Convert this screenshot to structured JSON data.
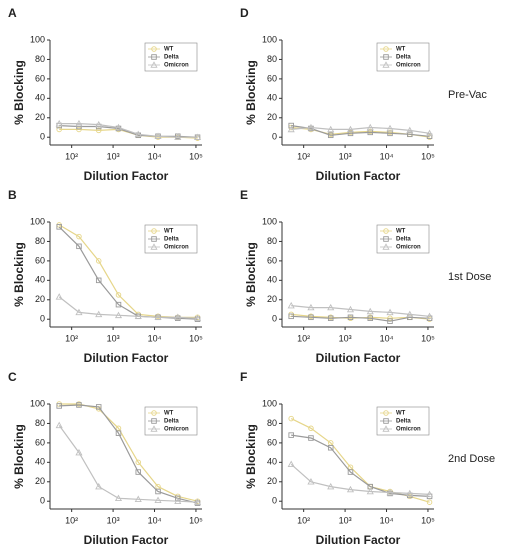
{
  "chart_data": [
    {
      "type": "line",
      "panel": "A",
      "xlabel": "Dilution Factor",
      "ylabel": "% Blocking",
      "log_x": true,
      "x": [
        50,
        150,
        450,
        1350,
        4050,
        12150,
        36450,
        109350
      ],
      "xlim": [
        30,
        140000
      ],
      "xticks": [
        {
          "value": 100,
          "label": "10²"
        },
        {
          "value": 1000,
          "label": "10³"
        },
        {
          "value": 10000,
          "label": "10⁴"
        },
        {
          "value": 100000,
          "label": "10⁵"
        }
      ],
      "ylim": [
        -8,
        100
      ],
      "yticks": [
        0,
        20,
        40,
        60,
        80,
        100
      ],
      "series": [
        {
          "name": "WT",
          "color": "#e6d68a",
          "marker": "circle",
          "values": [
            8,
            8,
            7,
            8,
            2,
            0,
            0,
            -1
          ]
        },
        {
          "name": "Delta",
          "color": "#9a9a9a",
          "marker": "square",
          "values": [
            12,
            11,
            11,
            9,
            2,
            1,
            1,
            0
          ]
        },
        {
          "name": "Omicron",
          "color": "#c0c0c0",
          "marker": "triangle",
          "values": [
            14,
            14,
            13,
            10,
            3,
            1,
            0,
            0
          ]
        }
      ]
    },
    {
      "type": "line",
      "panel": "B",
      "xlabel": "Dilution Factor",
      "ylabel": "% Blocking",
      "log_x": true,
      "x": [
        50,
        150,
        450,
        1350,
        4050,
        12150,
        36450,
        109350
      ],
      "xlim": [
        30,
        140000
      ],
      "xticks": [
        {
          "value": 100,
          "label": "10²"
        },
        {
          "value": 1000,
          "label": "10³"
        },
        {
          "value": 10000,
          "label": "10⁴"
        },
        {
          "value": 100000,
          "label": "10⁵"
        }
      ],
      "ylim": [
        -8,
        100
      ],
      "yticks": [
        0,
        20,
        40,
        60,
        80,
        100
      ],
      "series": [
        {
          "name": "WT",
          "color": "#e6d68a",
          "marker": "circle",
          "values": [
            97,
            85,
            60,
            25,
            5,
            3,
            2,
            2
          ]
        },
        {
          "name": "Delta",
          "color": "#9a9a9a",
          "marker": "square",
          "values": [
            95,
            75,
            40,
            15,
            3,
            2,
            1,
            0
          ]
        },
        {
          "name": "Omicron",
          "color": "#c0c0c0",
          "marker": "triangle",
          "values": [
            23,
            7,
            5,
            4,
            3,
            2,
            2,
            1
          ]
        }
      ]
    },
    {
      "type": "line",
      "panel": "C",
      "xlabel": "Dilution Factor",
      "ylabel": "% Blocking",
      "log_x": true,
      "x": [
        50,
        150,
        450,
        1350,
        4050,
        12150,
        36450,
        109350
      ],
      "xlim": [
        30,
        140000
      ],
      "xticks": [
        {
          "value": 100,
          "label": "10²"
        },
        {
          "value": 1000,
          "label": "10³"
        },
        {
          "value": 10000,
          "label": "10⁴"
        },
        {
          "value": 100000,
          "label": "10⁵"
        }
      ],
      "ylim": [
        -8,
        100
      ],
      "yticks": [
        0,
        20,
        40,
        60,
        80,
        100
      ],
      "series": [
        {
          "name": "WT",
          "color": "#e6d68a",
          "marker": "circle",
          "values": [
            100,
            100,
            95,
            75,
            40,
            15,
            5,
            0
          ]
        },
        {
          "name": "Delta",
          "color": "#9a9a9a",
          "marker": "square",
          "values": [
            98,
            99,
            97,
            70,
            30,
            10,
            3,
            -2
          ]
        },
        {
          "name": "Omicron",
          "color": "#c0c0c0",
          "marker": "triangle",
          "values": [
            78,
            50,
            15,
            3,
            2,
            1,
            0,
            -1
          ]
        }
      ]
    },
    {
      "type": "line",
      "panel": "D",
      "row_label": "Pre-Vac",
      "xlabel": "Dilution Factor",
      "ylabel": "% Blocking",
      "log_x": true,
      "x": [
        50,
        150,
        450,
        1350,
        4050,
        12150,
        36450,
        109350
      ],
      "xlim": [
        30,
        140000
      ],
      "xticks": [
        {
          "value": 100,
          "label": "10²"
        },
        {
          "value": 1000,
          "label": "10³"
        },
        {
          "value": 10000,
          "label": "10⁴"
        },
        {
          "value": 100000,
          "label": "10⁵"
        }
      ],
      "ylim": [
        -8,
        100
      ],
      "yticks": [
        0,
        20,
        40,
        60,
        80,
        100
      ],
      "series": [
        {
          "name": "WT",
          "color": "#e6d68a",
          "marker": "circle",
          "values": [
            10,
            8,
            3,
            5,
            6,
            5,
            3,
            0
          ]
        },
        {
          "name": "Delta",
          "color": "#9a9a9a",
          "marker": "square",
          "values": [
            12,
            9,
            2,
            4,
            5,
            4,
            3,
            1
          ]
        },
        {
          "name": "Omicron",
          "color": "#c0c0c0",
          "marker": "triangle",
          "values": [
            8,
            10,
            8,
            8,
            10,
            9,
            7,
            4
          ]
        }
      ]
    },
    {
      "type": "line",
      "panel": "E",
      "row_label": "1st Dose",
      "xlabel": "Dilution Factor",
      "ylabel": "% Blocking",
      "log_x": true,
      "x": [
        50,
        150,
        450,
        1350,
        4050,
        12150,
        36450,
        109350
      ],
      "xlim": [
        30,
        140000
      ],
      "xticks": [
        {
          "value": 100,
          "label": "10²"
        },
        {
          "value": 1000,
          "label": "10³"
        },
        {
          "value": 10000,
          "label": "10⁴"
        },
        {
          "value": 100000,
          "label": "10⁵"
        }
      ],
      "ylim": [
        -8,
        100
      ],
      "yticks": [
        0,
        20,
        40,
        60,
        80,
        100
      ],
      "series": [
        {
          "name": "WT",
          "color": "#e6d68a",
          "marker": "circle",
          "values": [
            5,
            3,
            2,
            1,
            2,
            1,
            2,
            0
          ]
        },
        {
          "name": "Delta",
          "color": "#9a9a9a",
          "marker": "square",
          "values": [
            3,
            2,
            1,
            2,
            1,
            -2,
            2,
            1
          ]
        },
        {
          "name": "Omicron",
          "color": "#c0c0c0",
          "marker": "triangle",
          "values": [
            14,
            12,
            12,
            10,
            8,
            7,
            5,
            3
          ]
        }
      ]
    },
    {
      "type": "line",
      "panel": "F",
      "row_label": "2nd Dose",
      "xlabel": "Dilution Factor",
      "ylabel": "% Blocking",
      "log_x": true,
      "x": [
        50,
        150,
        450,
        1350,
        4050,
        12150,
        36450,
        109350
      ],
      "xlim": [
        30,
        140000
      ],
      "xticks": [
        {
          "value": 100,
          "label": "10²"
        },
        {
          "value": 1000,
          "label": "10³"
        },
        {
          "value": 10000,
          "label": "10⁴"
        },
        {
          "value": 100000,
          "label": "10⁵"
        }
      ],
      "ylim": [
        -8,
        100
      ],
      "yticks": [
        0,
        20,
        40,
        60,
        80,
        100
      ],
      "series": [
        {
          "name": "WT",
          "color": "#e6d68a",
          "marker": "circle",
          "values": [
            85,
            75,
            60,
            35,
            15,
            10,
            5,
            -1
          ]
        },
        {
          "name": "Delta",
          "color": "#9a9a9a",
          "marker": "square",
          "values": [
            68,
            65,
            55,
            30,
            15,
            8,
            6,
            5
          ]
        },
        {
          "name": "Omicron",
          "color": "#c0c0c0",
          "marker": "triangle",
          "values": [
            38,
            20,
            15,
            12,
            10,
            9,
            8,
            7
          ]
        }
      ]
    }
  ]
}
